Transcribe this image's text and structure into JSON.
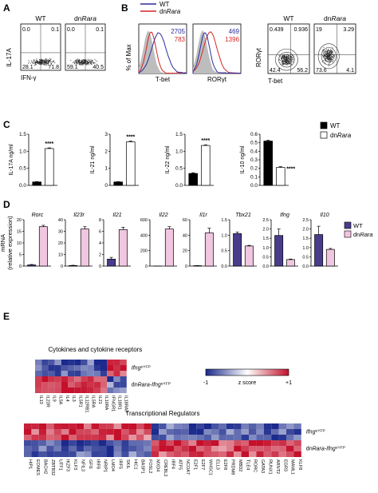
{
  "panel_labels": [
    "A",
    "B",
    "C",
    "D",
    "E"
  ],
  "chart_data": [
    {
      "panel": "A",
      "type": "scatter",
      "xlabel": "IFN-γ",
      "ylabel": "IL-17A",
      "plots": [
        {
          "title": "WT",
          "quadrants": {
            "ul": "0.0",
            "ur": "0.1",
            "ll": "28.1",
            "lr": "71.8"
          }
        },
        {
          "title": "dnRara",
          "title_plain": "dn",
          "title_italic": "Rara",
          "quadrants": {
            "ul": "0.0",
            "ur": "0.1",
            "ll": "59.1",
            "lr": "40.5"
          }
        }
      ]
    },
    {
      "panel": "B",
      "type": "area",
      "ylabel": "% of Max",
      "legend": [
        {
          "name": "WT",
          "color": "#2b2b9e"
        },
        {
          "name": "dnRara",
          "color": "#d42626"
        }
      ],
      "histograms": [
        {
          "xlabel": "T-bet",
          "values": {
            "wt": "2705",
            "dn": "783"
          }
        },
        {
          "xlabel": "RORγt",
          "values": {
            "wt": "469",
            "dn": "1396"
          }
        }
      ]
    },
    {
      "panel": "B-contour",
      "type": "scatter",
      "xlabel": "T-bet",
      "ylabel": "RORγt",
      "plots": [
        {
          "title": "WT",
          "quadrants": {
            "ul": "0.439",
            "ur": "0.936",
            "ll": "42.4",
            "lr": "56.2"
          }
        },
        {
          "title": "dnRara",
          "title_plain": "dn",
          "title_italic": "Rara",
          "quadrants": {
            "ul": "19",
            "ur": "3.29",
            "ll": "73.6",
            "lr": "4.1"
          }
        }
      ]
    },
    {
      "panel": "C",
      "type": "bar",
      "legend": [
        {
          "name": "WT",
          "fill": "#000000"
        },
        {
          "name": "dnRara",
          "fill": "#ffffff"
        }
      ],
      "plots": [
        {
          "ylabel": "IL-17A ng/ml",
          "ylim": [
            0,
            1.5
          ],
          "ticks": [
            "0.0",
            "0.5",
            "1.0",
            "1.5"
          ],
          "tick_values": [
            0,
            0.5,
            1.0,
            1.5
          ],
          "values": [
            0.1,
            1.08
          ],
          "err": [
            0.01,
            0.02
          ],
          "sig": "****",
          "sig_pos": "dn"
        },
        {
          "ylabel": "IL-21 ng/ml",
          "ylim": [
            0,
            3
          ],
          "ticks": [
            "0",
            "1",
            "2",
            "3"
          ],
          "tick_values": [
            0,
            1,
            2,
            3
          ],
          "values": [
            0.2,
            2.55
          ],
          "err": [
            0.02,
            0.05
          ],
          "sig": "****",
          "sig_pos": "dn"
        },
        {
          "ylabel": "IL-22 ng/ml",
          "ylim": [
            0,
            1.5
          ],
          "ticks": [
            "0.0",
            "0.5",
            "1.0",
            "1.5"
          ],
          "tick_values": [
            0,
            0.5,
            1.0,
            1.5
          ],
          "values": [
            0.35,
            1.17
          ],
          "err": [
            0.02,
            0.02
          ],
          "sig": "****",
          "sig_pos": "dn"
        },
        {
          "ylabel": "IL-10 ng/ml",
          "ylim": [
            0,
            0.6
          ],
          "ticks": [
            "0.0",
            "0.1",
            "0.2",
            "0.3",
            "0.4",
            "0.5",
            "0.6"
          ],
          "tick_values": [
            0,
            0.1,
            0.2,
            0.3,
            0.4,
            0.5,
            0.6
          ],
          "values": [
            0.52,
            0.21
          ],
          "err": [
            0.01,
            0.01
          ],
          "sig": "****",
          "sig_pos": "mid"
        }
      ]
    },
    {
      "panel": "D",
      "type": "bar",
      "ylabel": "mRNA (relative expression)",
      "ylabel_lines": [
        "mRNA",
        "(relative expression)"
      ],
      "legend": [
        {
          "name": "WT",
          "fill": "#4a3c8c"
        },
        {
          "name": "dnRara",
          "fill": "#f1c6e0"
        }
      ],
      "plots": [
        {
          "gene": "Rorc",
          "ylim": [
            0,
            20
          ],
          "ticks": [
            "0",
            "5",
            "10",
            "15",
            "20"
          ],
          "tick_values": [
            0,
            5,
            10,
            15,
            20
          ],
          "values": [
            0.5,
            17
          ],
          "err": [
            0.2,
            0.6
          ]
        },
        {
          "gene": "Il23r",
          "ylim": [
            0,
            40
          ],
          "ticks": [
            "0",
            "10",
            "20",
            "30",
            "40"
          ],
          "tick_values": [
            0,
            10,
            20,
            30,
            40
          ],
          "values": [
            0.5,
            32
          ],
          "err": [
            0.2,
            2
          ]
        },
        {
          "gene": "Il21",
          "ylim": [
            0,
            8
          ],
          "ticks": [
            "0",
            "2",
            "4",
            "6",
            "8"
          ],
          "tick_values": [
            0,
            2,
            4,
            6,
            8
          ],
          "values": [
            1.2,
            6.3
          ],
          "err": [
            0.3,
            0.4
          ]
        },
        {
          "gene": "Il22",
          "ylim": [
            0,
            600
          ],
          "ticks": [
            "0",
            "200",
            "400",
            "600"
          ],
          "tick_values": [
            0,
            200,
            400,
            600
          ],
          "values": [
            1,
            480
          ],
          "err": [
            0.5,
            30
          ]
        },
        {
          "gene": "Il1r",
          "ylim": [
            0,
            60
          ],
          "ticks": [
            "0",
            "20",
            "40",
            "60"
          ],
          "tick_values": [
            0,
            20,
            40,
            60
          ],
          "values": [
            0.5,
            43
          ],
          "err": [
            0.2,
            6
          ]
        },
        {
          "gene": "Tbx21",
          "ylim": [
            0,
            1.5
          ],
          "ticks": [
            "0.0",
            "0.5",
            "1.0",
            "1.5"
          ],
          "tick_values": [
            0,
            0.5,
            1.0,
            1.5
          ],
          "values": [
            1.05,
            0.65
          ],
          "err": [
            0.05,
            0.02
          ]
        },
        {
          "gene": "Ifng",
          "ylim": [
            0,
            2.5
          ],
          "ticks": [
            "0.0",
            "0.5",
            "1.0",
            "1.5",
            "2.0",
            "2.5"
          ],
          "tick_values": [
            0,
            0.5,
            1.0,
            1.5,
            2.0,
            2.5
          ],
          "values": [
            1.65,
            0.35
          ],
          "err": [
            0.35,
            0.03
          ]
        },
        {
          "gene": "Il10",
          "ylim": [
            0,
            2.5
          ],
          "ticks": [
            "0.0",
            "0.5",
            "1.0",
            "1.5",
            "2.0",
            "2.5"
          ],
          "tick_values": [
            0,
            0.5,
            1.0,
            1.5,
            2.0,
            2.5
          ],
          "values": [
            1.7,
            0.9
          ],
          "err": [
            0.45,
            0.05
          ]
        }
      ]
    },
    {
      "panel": "E",
      "type": "heatmap",
      "colorbar": {
        "min_label": "-1",
        "mid_label": "z score",
        "max_label": "+1",
        "colors": [
          "#1b2a8c",
          "#ffffff",
          "#c4102b"
        ]
      },
      "heatmaps": [
        {
          "title": "Cytokines and cytokine receptors",
          "row_labels": [
            "Ifng^eYFP",
            "dnRara-Ifng^eYFP"
          ],
          "row_label_parts": [
            [
              "Ifng",
              "eYFP",
              ""
            ],
            [
              "dnRara-Ifng",
              "eYFP",
              ""
            ]
          ],
          "columns": [
            "IL13",
            "IL23R",
            "IL9",
            "IL5A",
            "IL4",
            "IL3",
            "IL5R1",
            "IL12RB1",
            "IL5RA",
            "IL21",
            "IL10RA",
            "IFNGR1",
            "IL18R1",
            "IL18RAP"
          ],
          "wt_trend": [
            -1,
            -1,
            -1,
            -1,
            -1,
            -1,
            -1,
            -1,
            -1,
            -1,
            -1,
            1,
            1,
            1
          ],
          "rows": 6
        },
        {
          "title": "Transcriptional Regulators",
          "row_labels": [
            "Ifng^eYFP",
            "dnRara-Ifng^eYFP"
          ],
          "row_label_parts": [
            [
              "Ifng",
              "eYFP",
              ""
            ],
            [
              "dnRara-Ifng",
              "eYFP",
              ""
            ]
          ],
          "columns": [
            "HIP1",
            "EOMES",
            "BACH2",
            "ZBTB32",
            "UTF1",
            "IKZF3",
            "KLF3",
            "NFIL3",
            "GFI1",
            "IRF8",
            "NRIP1",
            "LMO4",
            "IRF5",
            "SKIL",
            "HIC1",
            "BASP1",
            "FOSL2",
            "MXD4",
            "CREBL2",
            "IRF4",
            "ATF5",
            "NCOA7",
            "E2F1",
            "E2F7",
            "WHSC1",
            "ELL3",
            "E2F8",
            "PRDM8",
            "MBD2",
            "TLE4",
            "RORC",
            "GATA3",
            "RUNX1",
            "ARNT2",
            "EGR3",
            "MAML1",
            "KLF8"
          ],
          "wt_trend": [
            1,
            1,
            1,
            1,
            1,
            1,
            1,
            1,
            1,
            1,
            1,
            1,
            1,
            1,
            1,
            1,
            1,
            -1,
            -1,
            -1,
            -1,
            -1,
            -1,
            -1,
            -1,
            -1,
            -1,
            -1,
            -1,
            -1,
            -1,
            -1,
            -1,
            -1,
            -1,
            -1,
            -1
          ],
          "rows": 6
        }
      ]
    }
  ]
}
